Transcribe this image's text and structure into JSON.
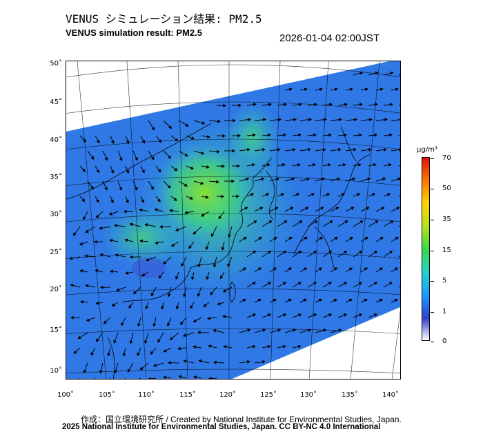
{
  "header": {
    "title_jp": "VENUS シミュレーション結果: PM2.5",
    "title_en": "VENUS simulation result: PM2.5",
    "timestamp": "2026-01-04 02:00JST"
  },
  "map": {
    "lat_ticks": [
      "50˚",
      "45˚",
      "40˚",
      "35˚",
      "30˚",
      "25˚",
      "20˚",
      "15˚",
      "10˚"
    ],
    "lon_ticks": [
      "100˚",
      "105˚",
      "110˚",
      "115˚",
      "120˚",
      "125˚",
      "130˚",
      "135˚",
      "140˚"
    ],
    "lat_range": [
      9,
      51
    ],
    "lon_range": [
      100,
      141
    ],
    "field_colors": {
      "background": "#2f78e6",
      "moderate": "#33c3c6",
      "elevated": "#44d67a",
      "high": "#8ee02e"
    }
  },
  "colorbar": {
    "unit": "µg/m³",
    "ticks": [
      "70",
      "50",
      "35",
      "15",
      "5",
      "1",
      "0"
    ],
    "colors": [
      "#ffffff",
      "#3040c8",
      "#1a9cff",
      "#22d2d2",
      "#3ad84a",
      "#b4e020",
      "#ffd400",
      "#ff7a00",
      "#e01010"
    ]
  },
  "footer": {
    "credit": "作成：国立環境研究所 / Created by National Institute for Environmental Studies, Japan.",
    "copyright": "2025 National Institute for Environmental Studies, Japan. CC BY-NC 4.0 International"
  }
}
